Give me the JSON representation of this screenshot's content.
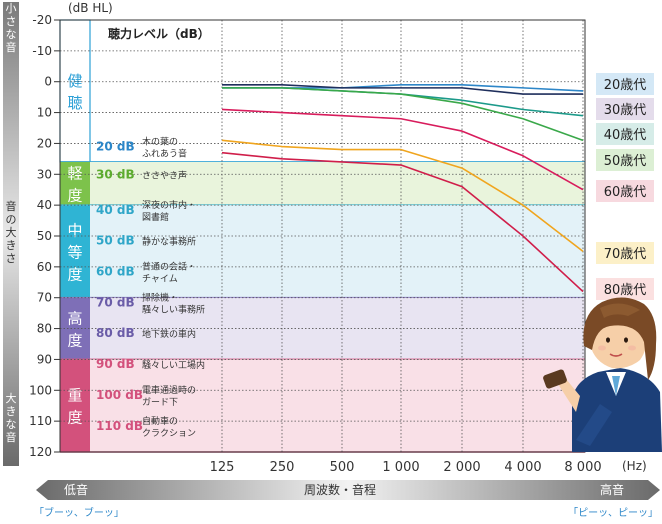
{
  "chart_data": {
    "type": "line",
    "y_unit": "(dB HL)",
    "x_unit": "(Hz)",
    "x": [
      "125",
      "250",
      "500",
      "1 000",
      "2 000",
      "4 000",
      "8 000"
    ],
    "ylim": [
      -20,
      120
    ],
    "yticks": [
      "-20",
      "-10",
      "0",
      "10",
      "20",
      "30",
      "40",
      "50",
      "60",
      "70",
      "80",
      "90",
      "100",
      "110",
      "120"
    ],
    "title": "聴力レベル（dB）",
    "series": [
      {
        "name": "20歳代",
        "color": "#2d86c8",
        "label_bg": "#d4e8f6",
        "values": [
          2,
          2,
          2,
          1,
          1,
          2,
          3
        ]
      },
      {
        "name": "30歳代",
        "color": "#1f2f5c",
        "label_bg": "#e4dceb",
        "values": [
          1,
          1,
          2,
          2,
          2,
          4,
          4
        ]
      },
      {
        "name": "40歳代",
        "color": "#1c9a8a",
        "label_bg": "#d6ece8",
        "values": [
          2,
          2,
          3,
          4,
          6,
          9,
          11
        ]
      },
      {
        "name": "50歳代",
        "color": "#3aa84a",
        "label_bg": "#dcefd4",
        "values": [
          2,
          2,
          3,
          4,
          7,
          12,
          19
        ]
      },
      {
        "name": "60歳代",
        "color": "#d81c5c",
        "label_bg": "#f7d9df",
        "values": [
          9,
          10,
          11,
          12,
          16,
          24,
          35
        ]
      },
      {
        "name": "70歳代",
        "color": "#f0a51e",
        "label_bg": "#fcf0c8",
        "values": [
          19,
          21,
          22,
          22,
          28,
          40,
          55
        ]
      },
      {
        "name": "80歳代",
        "color": "#d01e4a",
        "label_bg": "#fbe0e0",
        "values": [
          23,
          25,
          26,
          27,
          34,
          50,
          68
        ]
      }
    ],
    "bands": [
      {
        "name": "健聴",
        "range": [
          -20,
          26
        ],
        "tab_color": "#ffffff",
        "fill": "#ffffff",
        "line": "#2b9fd6"
      },
      {
        "name": "軽度",
        "range": [
          26,
          40
        ],
        "tab_color": "#7dc24b",
        "fill": "#e9f4dc",
        "line": "#35b8d6"
      },
      {
        "name": "中等度",
        "range": [
          40,
          70
        ],
        "tab_color": "#2fb4d4",
        "fill": "#e3f2f8",
        "line": "#7e6fb7"
      },
      {
        "name": "高度",
        "range": [
          70,
          90
        ],
        "tab_color": "#7e6fb7",
        "fill": "#e8e4f2",
        "line": "#d3517c"
      },
      {
        "name": "重度",
        "range": [
          90,
          120
        ],
        "tab_color": "#d3517c",
        "fill": "#f9e0e7",
        "line": "#d3517c"
      }
    ],
    "examples": [
      {
        "db": "20 dB",
        "text": "木の葉の\nふれあう音",
        "y": 21,
        "color": "#2b86c8"
      },
      {
        "db": "30 dB",
        "text": "ささやき声",
        "y": 30,
        "color": "#5cab2e"
      },
      {
        "db": "40 dB",
        "text": "深夜の市内・\n図書館",
        "y": 41.5,
        "color": "#2fa6c8"
      },
      {
        "db": "50 dB",
        "text": "静かな事務所",
        "y": 51.5,
        "color": "#2fa6c8"
      },
      {
        "db": "60 dB",
        "text": "普通の会話・\nチャイム",
        "y": 61.5,
        "color": "#2fa6c8"
      },
      {
        "db": "70 dB",
        "text": "掃除機・\n騒々しい事務所",
        "y": 71.5,
        "color": "#6a5ca8"
      },
      {
        "db": "80 dB",
        "text": "地下鉄の車内",
        "y": 81.5,
        "color": "#6a5ca8"
      },
      {
        "db": "90 dB",
        "text": "騒々しい工場内",
        "y": 91.5,
        "color": "#d3517c"
      },
      {
        "db": "100 dB",
        "text": "電車通過時の\nガード下",
        "y": 101.5,
        "color": "#d3517c"
      },
      {
        "db": "110 dB",
        "text": "自動車の\nクラクション",
        "y": 111.5,
        "color": "#d3517c"
      }
    ],
    "left_scale": {
      "top": "小さな音",
      "middle": "音の大きさ",
      "bottom": "大きな音"
    },
    "bottom_axis": {
      "label": "周波数・音程",
      "low": "低音",
      "high": "高音",
      "low_sound": "「ブーッ、ブーッ」",
      "high_sound": "「ピーッ、ピーッ」"
    }
  }
}
